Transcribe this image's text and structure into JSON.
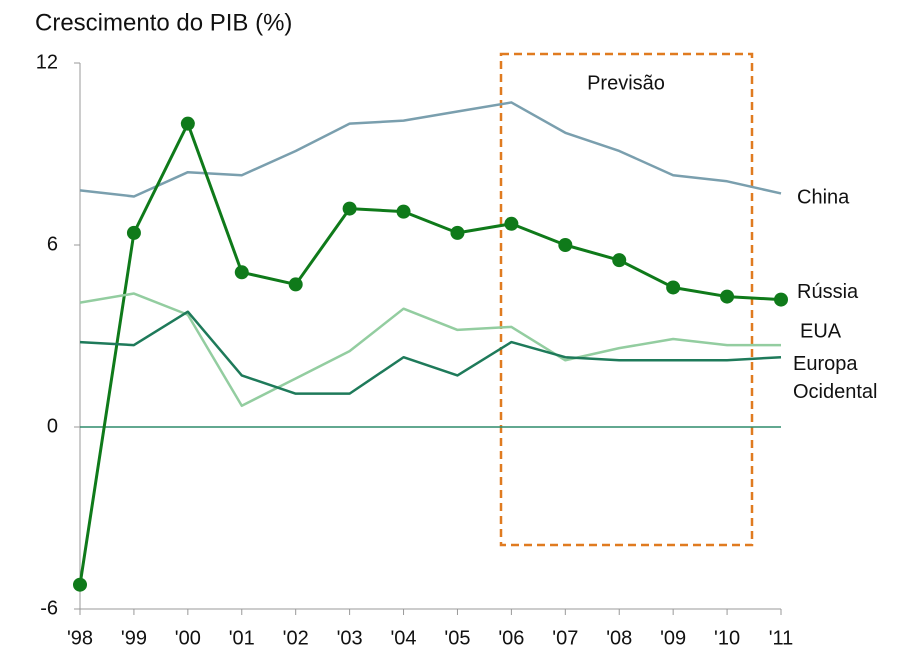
{
  "chart_data": {
    "type": "line",
    "title": "Crescimento do PIB (%)",
    "annotation": "Previsão",
    "categories": [
      "'98",
      "'99",
      "'00",
      "'01",
      "'02",
      "'03",
      "'04",
      "'05",
      "'06",
      "'07",
      "'08",
      "'09",
      "'10",
      "'11"
    ],
    "series": [
      {
        "name": "China",
        "color": "#7a9fae",
        "values": [
          7.8,
          7.6,
          8.4,
          8.3,
          9.1,
          10.0,
          10.1,
          10.4,
          10.7,
          9.7,
          9.1,
          8.3,
          8.1,
          7.7
        ]
      },
      {
        "name": "Rússia",
        "color": "#0f7a1a",
        "markers": true,
        "values": [
          -5.2,
          6.4,
          10.0,
          5.1,
          4.7,
          7.2,
          7.1,
          6.4,
          6.7,
          6.0,
          5.5,
          4.6,
          4.3,
          4.2
        ]
      },
      {
        "name": "EUA",
        "color": "#93cda0",
        "values": [
          4.1,
          4.4,
          3.7,
          0.7,
          1.6,
          2.5,
          3.9,
          3.2,
          3.3,
          2.2,
          2.6,
          2.9,
          2.7,
          2.7
        ]
      },
      {
        "name": "Europa Ocidental",
        "color": "#1e7a5a",
        "values": [
          2.8,
          2.7,
          3.8,
          1.7,
          1.1,
          1.1,
          2.3,
          1.7,
          2.8,
          2.3,
          2.2,
          2.2,
          2.2,
          2.3
        ]
      }
    ],
    "ylim": [
      -6,
      12
    ],
    "yticks": [
      -6,
      0,
      6,
      12
    ],
    "zero_line": true
  }
}
